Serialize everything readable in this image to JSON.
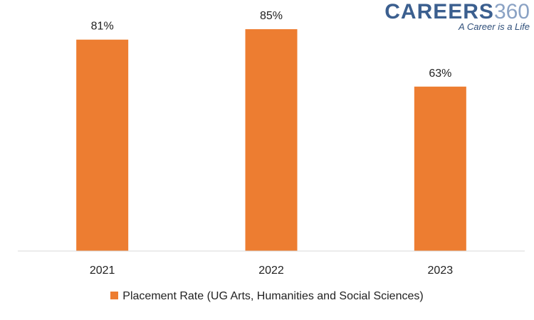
{
  "logo": {
    "word": "CAREERS",
    "number": "360",
    "tagline": "A Career is a Life"
  },
  "chart_data": {
    "type": "bar",
    "categories": [
      "2021",
      "2022",
      "2023"
    ],
    "series": [
      {
        "name": "Placement Rate (UG Arts, Humanities and Social Sciences)",
        "values": [
          81,
          85,
          63
        ],
        "labels": [
          "81%",
          "85%",
          "63%"
        ],
        "color": "#ED7D31"
      }
    ],
    "ylim": [
      0,
      100
    ],
    "grid": false,
    "legend": "bottom"
  }
}
